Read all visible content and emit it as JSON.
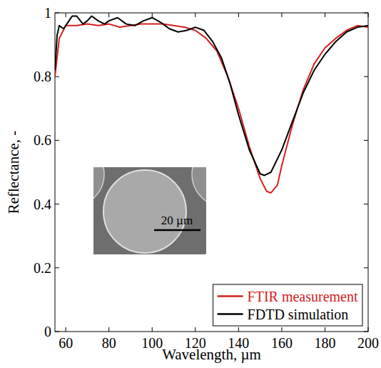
{
  "chart_data": {
    "type": "line",
    "x_label": "Wavelength, µm",
    "y_label": "Reflectance, -",
    "xlim": [
      55,
      200
    ],
    "ylim": [
      0,
      1
    ],
    "xticks": [
      60,
      80,
      100,
      120,
      140,
      160,
      180,
      200
    ],
    "yticks": [
      0,
      0.2,
      0.4,
      0.6,
      0.8,
      1
    ],
    "legend": "lower right",
    "grid": false,
    "annotations": [
      {
        "text": "20 µm"
      }
    ],
    "series": [
      {
        "name": "FTIR measurement",
        "color": "#d42020",
        "line_style": "solid",
        "x": [
          55,
          57,
          60,
          65,
          70,
          75,
          80,
          85,
          90,
          95,
          100,
          105,
          110,
          115,
          120,
          125,
          130,
          135,
          140,
          145,
          150,
          153,
          155,
          158,
          160,
          165,
          170,
          175,
          180,
          185,
          190,
          195,
          200
        ],
        "values": [
          0.8,
          0.92,
          0.96,
          0.96,
          0.965,
          0.96,
          0.965,
          0.955,
          0.96,
          0.965,
          0.965,
          0.965,
          0.96,
          0.955,
          0.945,
          0.92,
          0.88,
          0.8,
          0.7,
          0.58,
          0.48,
          0.44,
          0.435,
          0.46,
          0.52,
          0.65,
          0.76,
          0.84,
          0.89,
          0.92,
          0.945,
          0.96,
          0.955
        ]
      },
      {
        "name": "FDTD simulation",
        "color": "#000000",
        "line_style": "solid",
        "x": [
          55,
          56,
          57,
          59,
          61,
          63,
          65,
          68,
          70,
          72,
          75,
          78,
          80,
          84,
          88,
          92,
          96,
          100,
          104,
          108,
          112,
          116,
          120,
          124,
          128,
          132,
          136,
          140,
          145,
          150,
          152,
          155,
          160,
          165,
          170,
          175,
          180,
          185,
          190,
          195,
          200
        ],
        "values": [
          0.82,
          0.93,
          0.96,
          0.95,
          0.97,
          0.99,
          0.99,
          0.965,
          0.975,
          0.99,
          0.975,
          0.965,
          0.975,
          0.985,
          0.965,
          0.96,
          0.975,
          0.985,
          0.97,
          0.95,
          0.94,
          0.945,
          0.955,
          0.945,
          0.91,
          0.86,
          0.78,
          0.68,
          0.57,
          0.495,
          0.49,
          0.5,
          0.57,
          0.66,
          0.75,
          0.82,
          0.87,
          0.91,
          0.94,
          0.955,
          0.96
        ]
      }
    ]
  }
}
